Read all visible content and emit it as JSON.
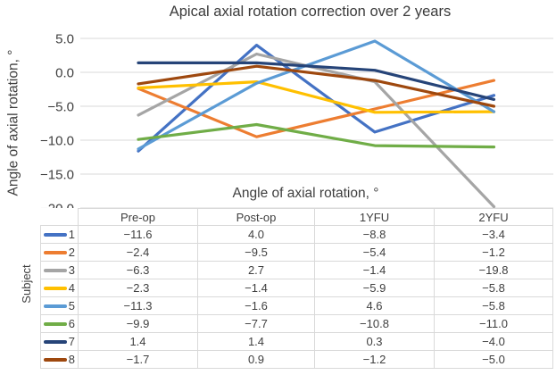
{
  "title": "Apical axial rotation correction over 2 years",
  "chart_data": {
    "type": "line",
    "title": "Apical axial rotation correction over 2 years",
    "categories": [
      "Pre-op",
      "Post-op",
      "1YFU",
      "2YFU"
    ],
    "series": [
      {
        "name": "1",
        "color": "#4472C4",
        "values": [
          -11.6,
          4.0,
          -8.8,
          -3.4
        ]
      },
      {
        "name": "2",
        "color": "#ED7D31",
        "values": [
          -2.4,
          -9.5,
          -5.4,
          -1.2
        ]
      },
      {
        "name": "3",
        "color": "#A5A5A5",
        "values": [
          -6.3,
          2.7,
          -1.4,
          -19.8
        ]
      },
      {
        "name": "4",
        "color": "#FFC000",
        "values": [
          -2.3,
          -1.4,
          -5.9,
          -5.8
        ]
      },
      {
        "name": "5",
        "color": "#5B9BD5",
        "values": [
          -11.3,
          -1.6,
          4.6,
          -5.8
        ]
      },
      {
        "name": "6",
        "color": "#70AD47",
        "values": [
          -9.9,
          -7.7,
          -10.8,
          -11.0
        ]
      },
      {
        "name": "7",
        "color": "#264478",
        "values": [
          1.4,
          1.4,
          0.3,
          -4.0
        ]
      },
      {
        "name": "8",
        "color": "#9E480E",
        "values": [
          -1.7,
          0.9,
          -1.2,
          -5.0
        ]
      }
    ],
    "ylabel": "Angle of axial rotation, °",
    "inner_axis_title": "Angle of axial rotation, °",
    "row_axis_label": "Subject",
    "yticks": [
      5.0,
      0.0,
      -5.0,
      -10.0,
      -15.0,
      -20.0
    ],
    "ylim": [
      -20,
      5
    ],
    "grid": true,
    "legend_position": "table-left"
  },
  "colors": {
    "grid": "#d9d9d9",
    "border": "#d9d9d9",
    "text": "#3f3f3f",
    "title_text": "#3b3b3b"
  }
}
